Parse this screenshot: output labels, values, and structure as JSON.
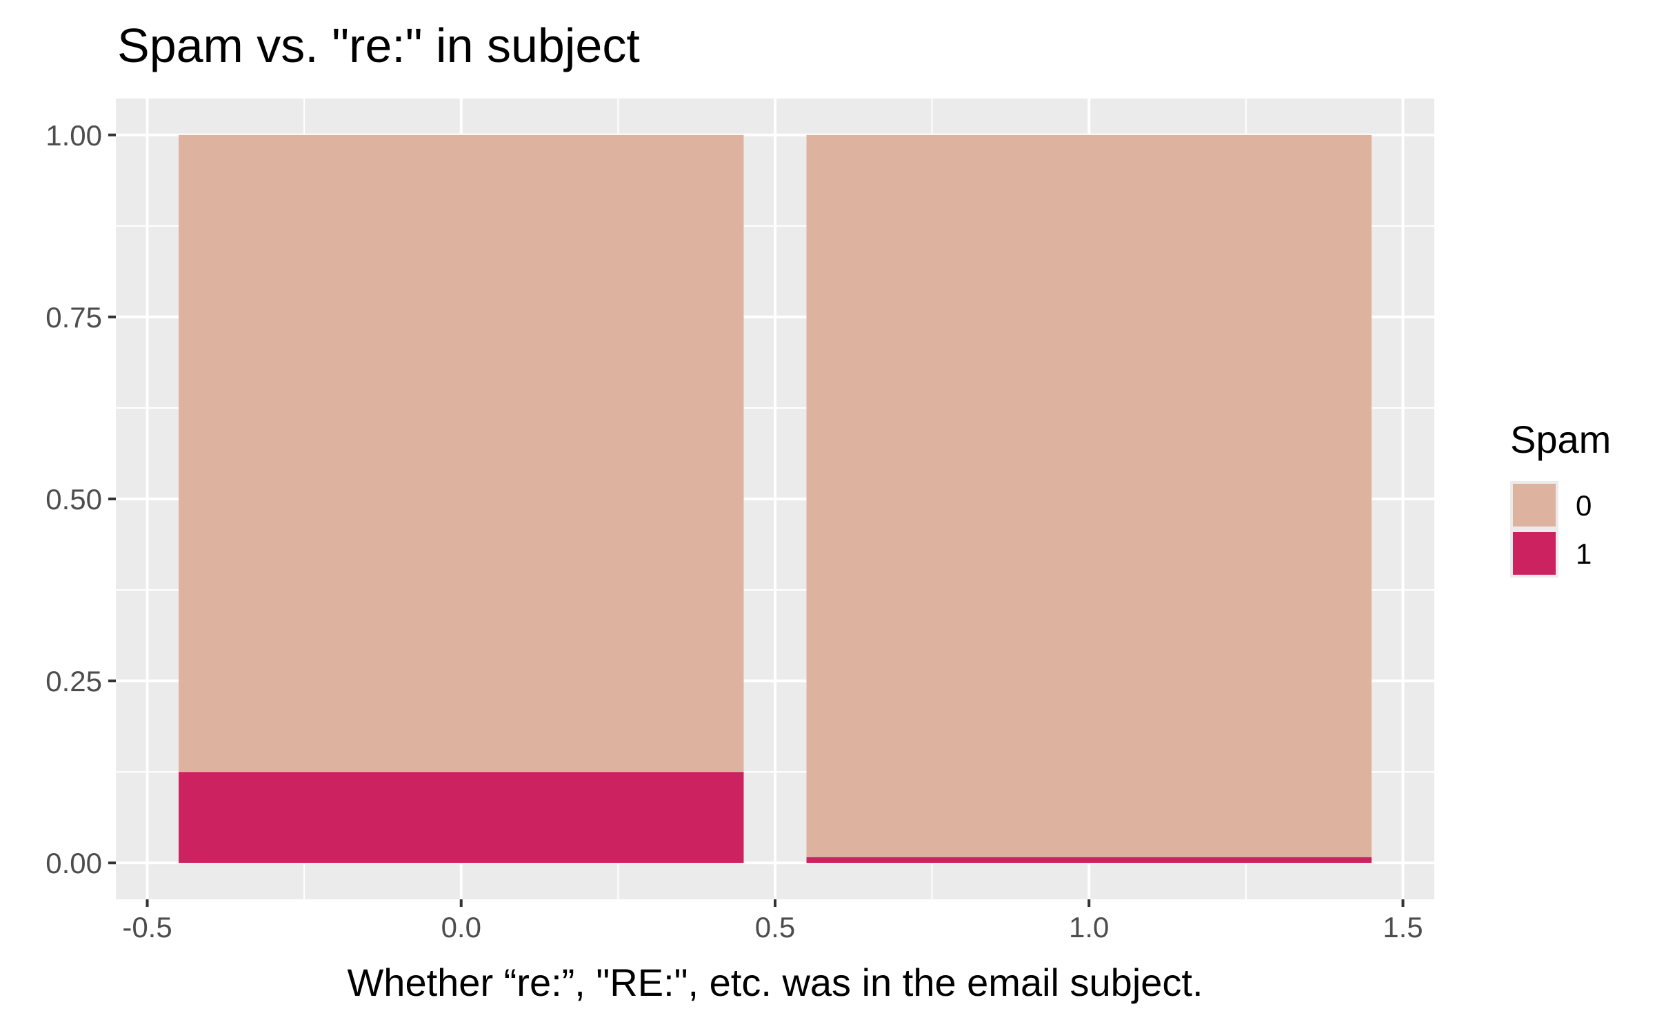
{
  "chart_data": {
    "type": "bar",
    "stacked": true,
    "title": "Spam vs. \"re:\" in subject",
    "xlabel": "Whether “re:”, \"RE:\", etc. was in the email subject.",
    "ylabel": "",
    "categories": [
      0,
      1
    ],
    "xlim": [
      -0.55,
      1.55
    ],
    "ylim": [
      -0.05,
      1.05
    ],
    "xticks": [
      -0.5,
      0.0,
      0.5,
      1.0,
      1.5
    ],
    "xtick_labels": [
      "-0.5",
      "0.0",
      "0.5",
      "1.0",
      "1.5"
    ],
    "yticks": [
      0.0,
      0.25,
      0.5,
      0.75,
      1.0
    ],
    "ytick_labels": [
      "0.00",
      "0.25",
      "0.50",
      "0.75",
      "1.00"
    ],
    "bar_width": 0.9,
    "series": [
      {
        "name": "0",
        "values": [
          0.875,
          0.992
        ]
      },
      {
        "name": "1",
        "values": [
          0.125,
          0.008
        ]
      }
    ],
    "legend": {
      "title": "Spam",
      "placement": "right"
    },
    "grid": true,
    "colors": {
      "panel_bg": "#ebebeb",
      "grid": "#ffffff",
      "series_0": "#ddb3a0",
      "series_1": "#cc2360"
    }
  }
}
